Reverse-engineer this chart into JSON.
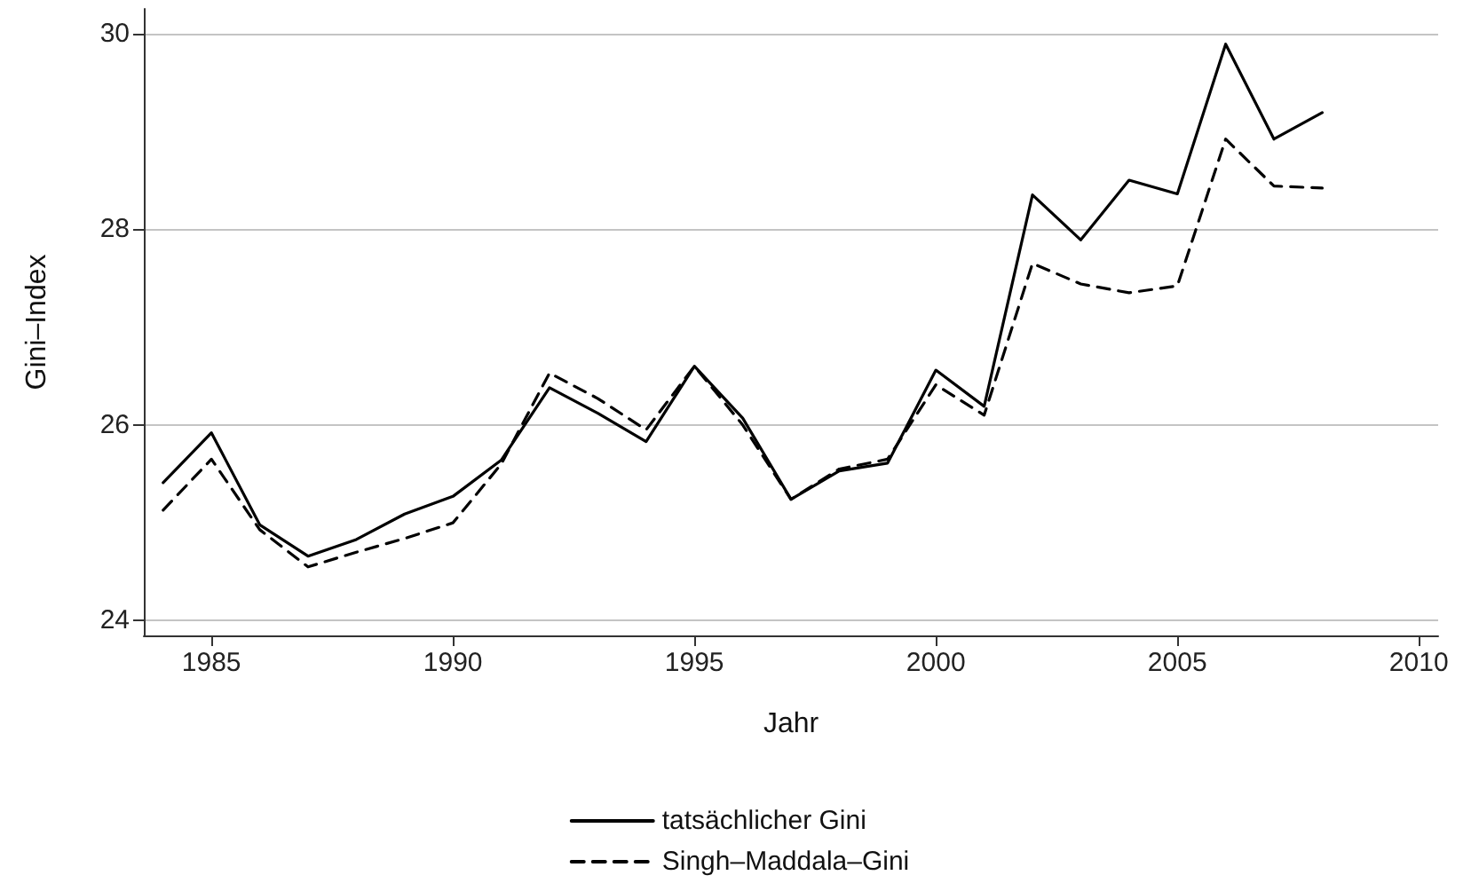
{
  "chart_data": {
    "type": "line",
    "xlabel": "Jahr",
    "ylabel": "Gini–Index",
    "x": [
      1984,
      1985,
      1986,
      1987,
      1988,
      1989,
      1990,
      1991,
      1992,
      1993,
      1994,
      1995,
      1996,
      1997,
      1998,
      1999,
      2000,
      2001,
      2002,
      2003,
      2004,
      2005,
      2006,
      2007,
      2008
    ],
    "xlim": [
      1983.6,
      2010.4
    ],
    "xticks": [
      1985,
      1990,
      1995,
      2000,
      2005,
      2010
    ],
    "ylim": [
      23.85,
      30.25
    ],
    "yticks": [
      24,
      26,
      28,
      30
    ],
    "grid": "y",
    "legend": "bottom",
    "marker": "none",
    "series": [
      {
        "name": "tatsächlicher Gini",
        "color": "#000000",
        "line_style": "solid",
        "values": [
          25.41,
          25.92,
          24.98,
          24.66,
          24.83,
          25.09,
          25.27,
          25.64,
          26.38,
          26.12,
          25.83,
          26.6,
          26.07,
          25.24,
          25.53,
          25.61,
          26.56,
          26.19,
          28.35,
          27.89,
          28.5,
          28.36,
          29.89,
          28.92,
          29.19
        ]
      },
      {
        "name": "Singh–Maddala–Gini",
        "color": "#000000",
        "line_style": "dashed",
        "values": [
          25.13,
          25.65,
          24.93,
          24.55,
          24.7,
          24.84,
          25.0,
          25.6,
          26.53,
          26.27,
          25.95,
          26.6,
          26.0,
          25.24,
          25.55,
          25.65,
          26.41,
          26.1,
          27.65,
          27.44,
          27.35,
          27.42,
          28.92,
          28.44,
          28.42
        ]
      }
    ]
  }
}
